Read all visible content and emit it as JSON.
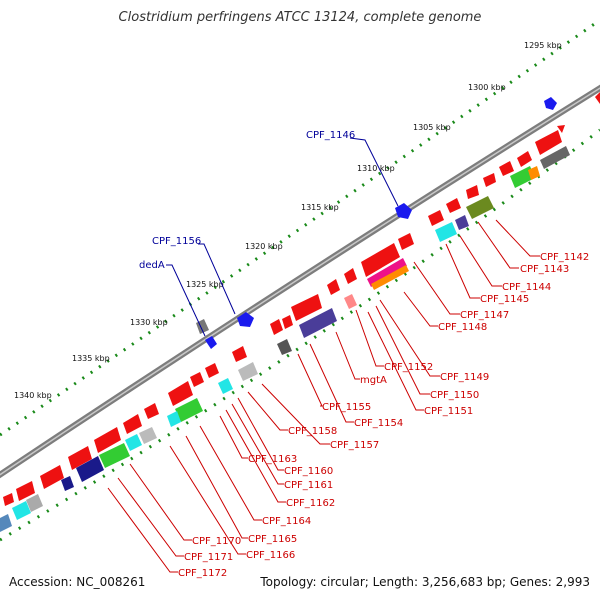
{
  "title": "Clostridium perfringens ATCC 13124, complete genome",
  "footer": {
    "accession": "Accession: NC_008261",
    "stats": "Topology: circular; Length: 3,256,683 bp; Genes: 2,993"
  },
  "ticks": [
    "1295 kbp",
    "1300 kbp",
    "1305 kbp",
    "1310 kbp",
    "1315 kbp",
    "1320 kbp",
    "1325 kbp",
    "1330 kbp",
    "1335 kbp",
    "1340 kbp"
  ],
  "labels_forward": [
    "CPF_1146",
    "CPF_1156",
    "dedA"
  ],
  "labels_reverse": [
    "CPF_1142",
    "CPF_1143",
    "CPF_1144",
    "CPF_1145",
    "CPF_1147",
    "CPF_1148",
    "CPF_1149",
    "CPF_1150",
    "CPF_1151",
    "CPF_1152",
    "mgtA",
    "CPF_1154",
    "CPF_1155",
    "CPF_1157",
    "CPF_1158",
    "CPF_1160",
    "CPF_1161",
    "CPF_1162",
    "CPF_1163",
    "CPF_1164",
    "CPF_1165",
    "CPF_1166",
    "CPF_1170",
    "CPF_1171",
    "CPF_1172"
  ],
  "colors": {
    "backbone": "#8c8c8c",
    "gene_red": "#ee1111",
    "gene_blue": "#1a1aee",
    "gene_cyan": "#22e5e5",
    "gene_green": "#33cc33",
    "gene_purple": "#4a3d99",
    "gene_olive": "#6b8a1f",
    "gene_gray": "#6e6e6e",
    "gene_orange": "#ff8c00",
    "gene_magenta": "#ee1188",
    "gene_pink": "#ff8888",
    "tick_dots": "#1a8a1a",
    "label_red": "#cc0000",
    "label_blue": "#000099"
  }
}
